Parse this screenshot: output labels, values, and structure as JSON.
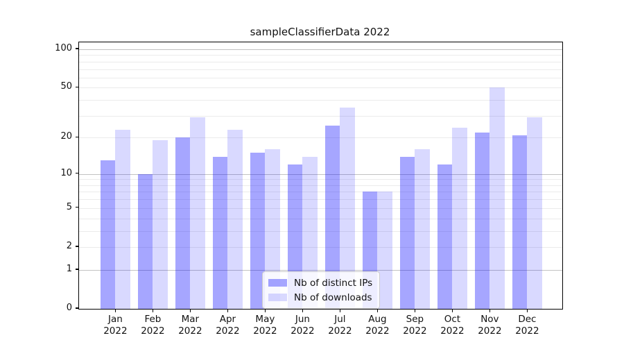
{
  "chart_data": {
    "type": "bar",
    "title": "sampleClassifierData 2022",
    "categories": [
      "Jan",
      "Feb",
      "Mar",
      "Apr",
      "May",
      "Jun",
      "Jul",
      "Aug",
      "Sep",
      "Oct",
      "Nov",
      "Dec"
    ],
    "category_year": "2022",
    "series": [
      {
        "name": "Nb of distinct IPs",
        "color": "rgba(0,0,255,0.35)",
        "values": [
          13,
          10,
          20,
          14,
          15,
          12,
          25,
          7,
          14,
          12,
          22,
          21
        ]
      },
      {
        "name": "Nb of downloads",
        "color": "rgba(0,0,255,0.15)",
        "values": [
          23,
          19,
          29,
          23,
          16,
          14,
          35,
          7,
          16,
          24,
          50,
          29
        ]
      }
    ],
    "xlabel": "",
    "ylabel": "",
    "yscale": "log1p",
    "ylim": [
      0,
      115
    ],
    "ytick_labels": [
      100,
      50,
      20,
      10,
      5,
      2,
      1,
      0
    ],
    "major_gridlines": [
      1,
      10,
      100
    ],
    "minor_gridlines": [
      2,
      3,
      4,
      5,
      6,
      7,
      8,
      9,
      20,
      30,
      40,
      50,
      60,
      70,
      80,
      90
    ],
    "grid": true,
    "legend_position": "lower center",
    "colors": {
      "bar_dark": "rgba(0,0,255,0.35)",
      "bar_light": "rgba(0,0,255,0.15)",
      "major_grid": "#c2c2c2",
      "minor_grid": "#ebebeb",
      "spine": "#000000",
      "background": "#ffffff"
    }
  }
}
